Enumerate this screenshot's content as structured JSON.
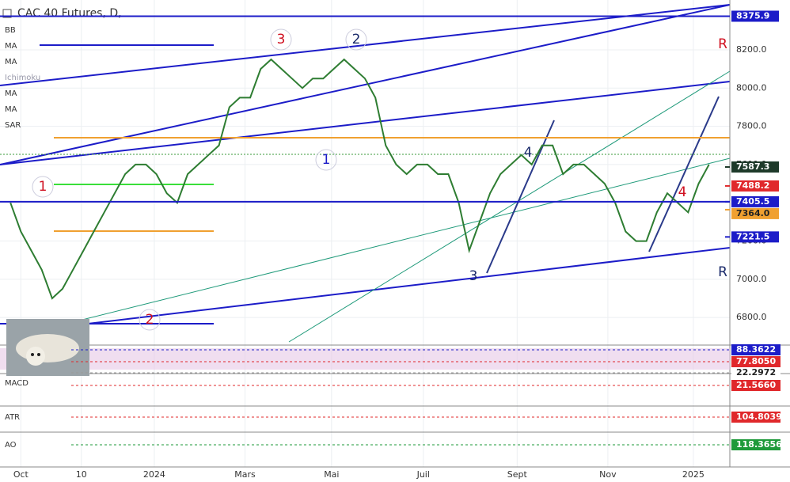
{
  "chart_data": {
    "type": "line",
    "title": "CAC 40 Futures, D,",
    "color": "#2e7d32",
    "x": [
      -1,
      0,
      1,
      2,
      3,
      4,
      5,
      6,
      7,
      8,
      9,
      10,
      11,
      12,
      13,
      14,
      15,
      16,
      17,
      18,
      19,
      20,
      21,
      22,
      23,
      24,
      25,
      26,
      27,
      28,
      29,
      30,
      31,
      32,
      33,
      34,
      35,
      36,
      37,
      38,
      39,
      40,
      41,
      42,
      43,
      44,
      45,
      46,
      47,
      48,
      49,
      50,
      51,
      52,
      53,
      54,
      55,
      56,
      57,
      58,
      59,
      60,
      61,
      62,
      63,
      64,
      65,
      66
    ],
    "values": [
      7400,
      7250,
      7150,
      7050,
      6900,
      6950,
      7050,
      7150,
      7250,
      7350,
      7450,
      7550,
      7600,
      7600,
      7550,
      7450,
      7400,
      7550,
      7600,
      7650,
      7700,
      7900,
      7950,
      7950,
      8100,
      8150,
      8100,
      8050,
      8000,
      8050,
      8050,
      8100,
      8150,
      8100,
      8050,
      7950,
      7700,
      7600,
      7550,
      7600,
      7600,
      7550,
      7550,
      7400,
      7150,
      7300,
      7450,
      7550,
      7600,
      7650,
      7600,
      7700,
      7700,
      7550,
      7600,
      7600,
      7550,
      7500,
      7400,
      7250,
      7200,
      7200,
      7350,
      7450,
      7400,
      7350,
      7500,
      7600
    ],
    "xlim": [
      -2,
      68
    ],
    "xticks": [
      {
        "value": 0,
        "label": "Oct"
      },
      {
        "value": 5.8,
        "label": "10"
      },
      {
        "value": 12.8,
        "label": "2024"
      },
      {
        "value": 21.5,
        "label": "Mars"
      },
      {
        "value": 29.8,
        "label": "Mai"
      },
      {
        "value": 38.6,
        "label": "Juil"
      },
      {
        "value": 47.6,
        "label": "Sept"
      },
      {
        "value": 56.3,
        "label": "Nov"
      },
      {
        "value": 64.5,
        "label": "2025"
      }
    ],
    "ylim": [
      6660,
      8440
    ],
    "yticks": [
      {
        "value": 6800,
        "label": "6800.0"
      },
      {
        "value": 7000,
        "label": "7000.0"
      },
      {
        "value": 7200,
        "label": "7200.0"
      },
      {
        "value": 7400,
        "label": "7400.0"
      },
      {
        "value": 7600,
        "label": "7600.0"
      },
      {
        "value": 7800,
        "label": "7800.0"
      },
      {
        "value": 8000,
        "label": "8000.0"
      },
      {
        "value": 8200,
        "label": "8200.0"
      }
    ],
    "grid": true,
    "levels": [
      8375.9,
      7587.3,
      7488.2,
      7405.5,
      {
        "value": 7364,
        "label": "7364.0"
      },
      7221.5
    ],
    "level_colors": [
      "#1c1cc8",
      "#1e3a2a",
      "#e0282b",
      "#1c1cc8",
      "#f0a030",
      "#1c1cc8"
    ],
    "indicator_labels": [
      "BB",
      "MA",
      "MA",
      "Ichimoku",
      "MA",
      "MA",
      "SAR"
    ],
    "annotations": [
      "3",
      "2",
      "1",
      "1",
      "2",
      "3",
      "4",
      "4",
      "R",
      "R"
    ],
    "panels": [
      {
        "label": null,
        "badges": [
          88.3622,
          {
            "value": 77.805,
            "label": "77.8050"
          },
          22.2972
        ],
        "badge_colors": [
          "#1c1cc8",
          "#e0282b",
          "#ffffff"
        ]
      },
      {
        "label": "MACD",
        "badges": [
          {
            "value": 21.566,
            "label": "21.5660"
          }
        ],
        "badge_colors": [
          "#e0282b"
        ]
      },
      {
        "label": "ATR",
        "badges": [
          104.8039
        ],
        "badge_colors": [
          "#e0282b"
        ]
      },
      {
        "label": "AO",
        "badges": [
          118.3656
        ],
        "badge_colors": [
          "#1e9a3a"
        ]
      }
    ]
  }
}
